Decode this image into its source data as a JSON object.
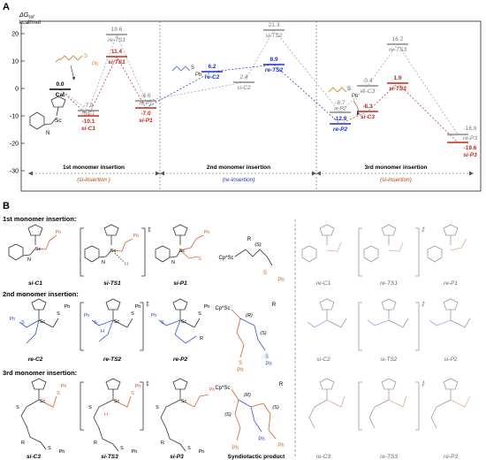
{
  "panel_a": {
    "label": "A",
    "ylabel": "ΔG",
    "ylabel_sub": "sol",
    "yunit": "kcal/mol",
    "yticks": [
      "20",
      "10",
      "0",
      "-10",
      "-20",
      "-30"
    ],
    "sections": [
      {
        "title": "1st monomer insertion",
        "sub": "(si-insertion )",
        "sub_color": "#b24000"
      },
      {
        "title": "2nd monomer insertion",
        "sub": "(re-insertion)",
        "sub_color": "#1a2fd0"
      },
      {
        "title": "3rd monomer insertion",
        "sub": "(si-insertion)",
        "sub_color": "#b24000"
      }
    ],
    "levels": [
      {
        "value": "0.0",
        "name": "Cat",
        "color": "#000",
        "bold": true
      },
      {
        "value": "-7.9",
        "name": "re-C1",
        "color": "#777",
        "bold": false
      },
      {
        "value": "-10.1",
        "name": "si-C1",
        "color": "#c0281b",
        "bold": true
      },
      {
        "value": "19.6",
        "name": "re-TS1",
        "color": "#777",
        "bold": false
      },
      {
        "value": "11.4",
        "name": "si-TS1",
        "color": "#c0281b",
        "bold": true
      },
      {
        "value": "-4.6",
        "name": "re-P1",
        "color": "#777",
        "bold": false
      },
      {
        "value": "-7.0",
        "name": "si-P1",
        "color": "#c0281b",
        "bold": true
      },
      {
        "value": "6.2",
        "name": "re-C2",
        "color": "#1a2fd0",
        "bold": true
      },
      {
        "value": "2.4",
        "name": "si-C2",
        "color": "#777",
        "bold": false
      },
      {
        "value": "21.3",
        "name": "si-TS2",
        "color": "#777",
        "bold": false
      },
      {
        "value": "8.9",
        "name": "re-TS2",
        "color": "#1a2fd0",
        "bold": true
      },
      {
        "value": "-8.7",
        "name": "si-P2",
        "color": "#777",
        "bold": false
      },
      {
        "value": "-12.9",
        "name": "re-P2",
        "color": "#1a2fd0",
        "bold": true
      },
      {
        "value": "-0.4",
        "name": "re-C3",
        "color": "#777",
        "bold": false
      },
      {
        "value": "-8.3",
        "name": "si-C3",
        "color": "#c0281b",
        "bold": true
      },
      {
        "value": "16.2",
        "name": "re-TS3",
        "color": "#777",
        "bold": false
      },
      {
        "value": "1.9",
        "name": "si-TS3",
        "color": "#c0281b",
        "bold": true
      },
      {
        "value": "-16.9",
        "name": "re-P3",
        "color": "#777",
        "bold": false
      },
      {
        "value": "-19.6",
        "name": "si-P3",
        "color": "#c0281b",
        "bold": true
      }
    ],
    "monomer_label": "S",
    "monomer_ph": "Ph",
    "catalyst_metal": "Sc",
    "catalyst_n": "N"
  },
  "panel_b": {
    "label": "B",
    "row_titles": [
      "1st monomer insertion:",
      "2nd monomer insertion:",
      "3rd monomer insertion:"
    ],
    "row1": [
      "si-C1",
      "si-TS1",
      "si-P1",
      "re-C1",
      "re-TS1",
      "re-P1"
    ],
    "row2": [
      "re-C2",
      "re-TS2",
      "re-P2",
      "si-C2",
      "si-TS2",
      "si-P2"
    ],
    "row3": [
      "si-C3",
      "si-TS3",
      "si-P3",
      "re-C3",
      "re-TS3",
      "re-P3"
    ],
    "syndiotactic_label": "Syndiotactic product",
    "ts_mark": "‡",
    "atoms": {
      "sc": "Sc",
      "s": "S",
      "ph": "Ph",
      "n": "N",
      "h": "H",
      "r": "R",
      "cp": "Cp*Sc"
    },
    "stereo": {
      "s": "(S)",
      "r": "(R)"
    }
  }
}
